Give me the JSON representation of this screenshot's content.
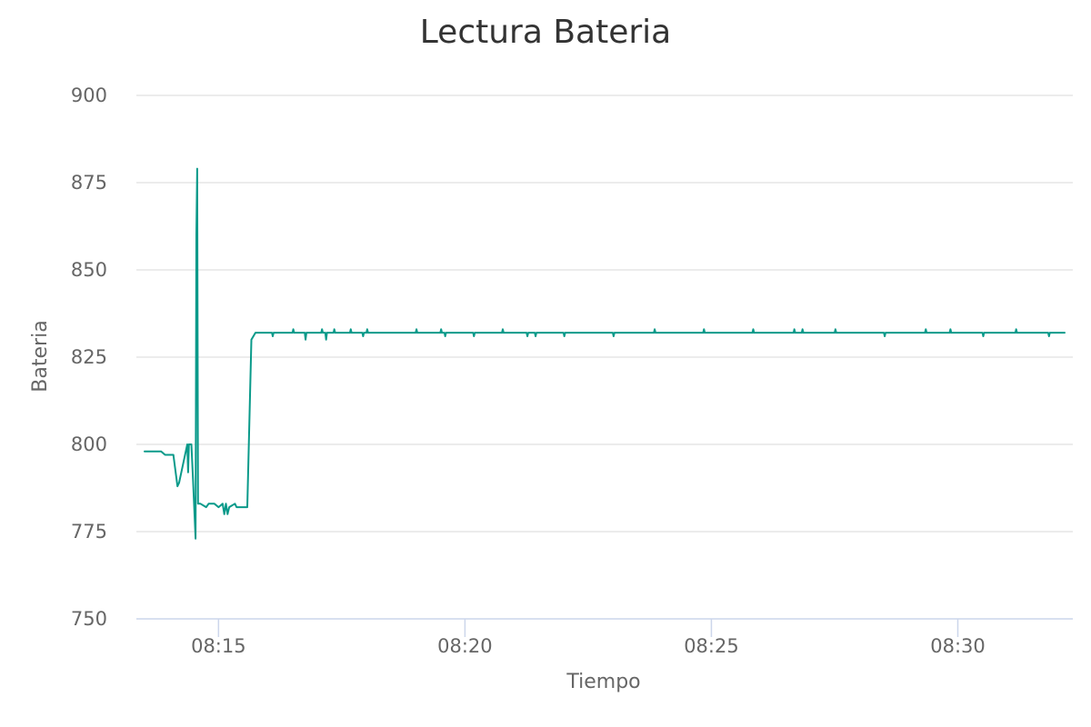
{
  "chart_data": {
    "type": "line",
    "title": "Lectura Bateria",
    "xlabel": "Tiempo",
    "ylabel": "Bateria",
    "ylim": [
      750,
      900
    ],
    "yticks": [
      "750",
      "775",
      "800",
      "825",
      "850",
      "875",
      "900"
    ],
    "xlim": [
      "08:13:20",
      "08:32:20"
    ],
    "xticks": [
      "08:15",
      "08:20",
      "08:25",
      "08:30"
    ],
    "grid": true,
    "legend": "none",
    "colors": {
      "series": "#0a9a8a"
    },
    "series": [
      {
        "x": [
          "08:13:30",
          "08:13:50",
          "08:13:55",
          "08:14:05",
          "08:14:10",
          "08:14:12",
          "08:14:22",
          "08:14:23",
          "08:14:24",
          "08:14:25",
          "08:14:27",
          "08:14:29",
          "08:14:32",
          "08:14:33",
          "08:14:34",
          "08:14:35",
          "08:14:38",
          "08:14:45",
          "08:14:48",
          "08:14:55",
          "08:15:00",
          "08:15:05",
          "08:15:07",
          "08:15:09",
          "08:15:11",
          "08:15:13",
          "08:15:20",
          "08:15:22",
          "08:15:30",
          "08:15:35",
          "08:15:40",
          "08:15:45",
          "08:16:05",
          "08:16:06",
          "08:16:07",
          "08:16:30",
          "08:16:31",
          "08:16:32",
          "08:16:45",
          "08:16:46",
          "08:16:47",
          "08:17:05",
          "08:17:06",
          "08:17:07",
          "08:17:10",
          "08:17:11",
          "08:17:12",
          "08:17:20",
          "08:17:21",
          "08:17:22",
          "08:17:40",
          "08:17:41",
          "08:17:42",
          "08:17:55",
          "08:17:56",
          "08:17:57",
          "08:18:00",
          "08:18:01",
          "08:18:02",
          "08:19:00",
          "08:19:01",
          "08:19:02",
          "08:19:30",
          "08:19:31",
          "08:19:32",
          "08:19:35",
          "08:19:36",
          "08:19:37",
          "08:20:10",
          "08:20:11",
          "08:20:12",
          "08:20:45",
          "08:20:46",
          "08:20:47",
          "08:21:15",
          "08:21:16",
          "08:21:17",
          "08:21:25",
          "08:21:26",
          "08:21:27",
          "08:22:00",
          "08:22:01",
          "08:22:02",
          "08:23:00",
          "08:23:01",
          "08:23:02",
          "08:23:50",
          "08:23:51",
          "08:23:52",
          "08:24:50",
          "08:24:51",
          "08:24:52",
          "08:25:50",
          "08:25:51",
          "08:25:52",
          "08:26:40",
          "08:26:41",
          "08:26:42",
          "08:26:50",
          "08:26:51",
          "08:26:52",
          "08:27:30",
          "08:27:31",
          "08:27:32",
          "08:28:30",
          "08:28:31",
          "08:28:32",
          "08:29:20",
          "08:29:21",
          "08:29:22",
          "08:29:50",
          "08:29:51",
          "08:29:52",
          "08:30:30",
          "08:30:31",
          "08:30:32",
          "08:31:10",
          "08:31:11",
          "08:31:12",
          "08:31:50",
          "08:31:51",
          "08:31:52",
          "08:32:10"
        ],
        "y": [
          798,
          798,
          797,
          797,
          788,
          789,
          800,
          792,
          800,
          800,
          800,
          790,
          773,
          860,
          879,
          783,
          783,
          782,
          783,
          783,
          782,
          783,
          780,
          783,
          780,
          782,
          783,
          782,
          782,
          782,
          830,
          832,
          832,
          831,
          832,
          832,
          833,
          832,
          832,
          830,
          832,
          832,
          833,
          832,
          832,
          830,
          832,
          832,
          833,
          832,
          832,
          833,
          832,
          832,
          831,
          832,
          832,
          833,
          832,
          832,
          833,
          832,
          832,
          833,
          832,
          832,
          831,
          832,
          832,
          831,
          832,
          832,
          833,
          832,
          832,
          831,
          832,
          832,
          831,
          832,
          832,
          831,
          832,
          832,
          831,
          832,
          832,
          833,
          832,
          832,
          833,
          832,
          832,
          833,
          832,
          832,
          833,
          832,
          832,
          833,
          832,
          832,
          833,
          832,
          832,
          831,
          832,
          832,
          833,
          832,
          832,
          833,
          832,
          832,
          831,
          832,
          832,
          833,
          832,
          832,
          831,
          832,
          832
        ]
      }
    ]
  }
}
